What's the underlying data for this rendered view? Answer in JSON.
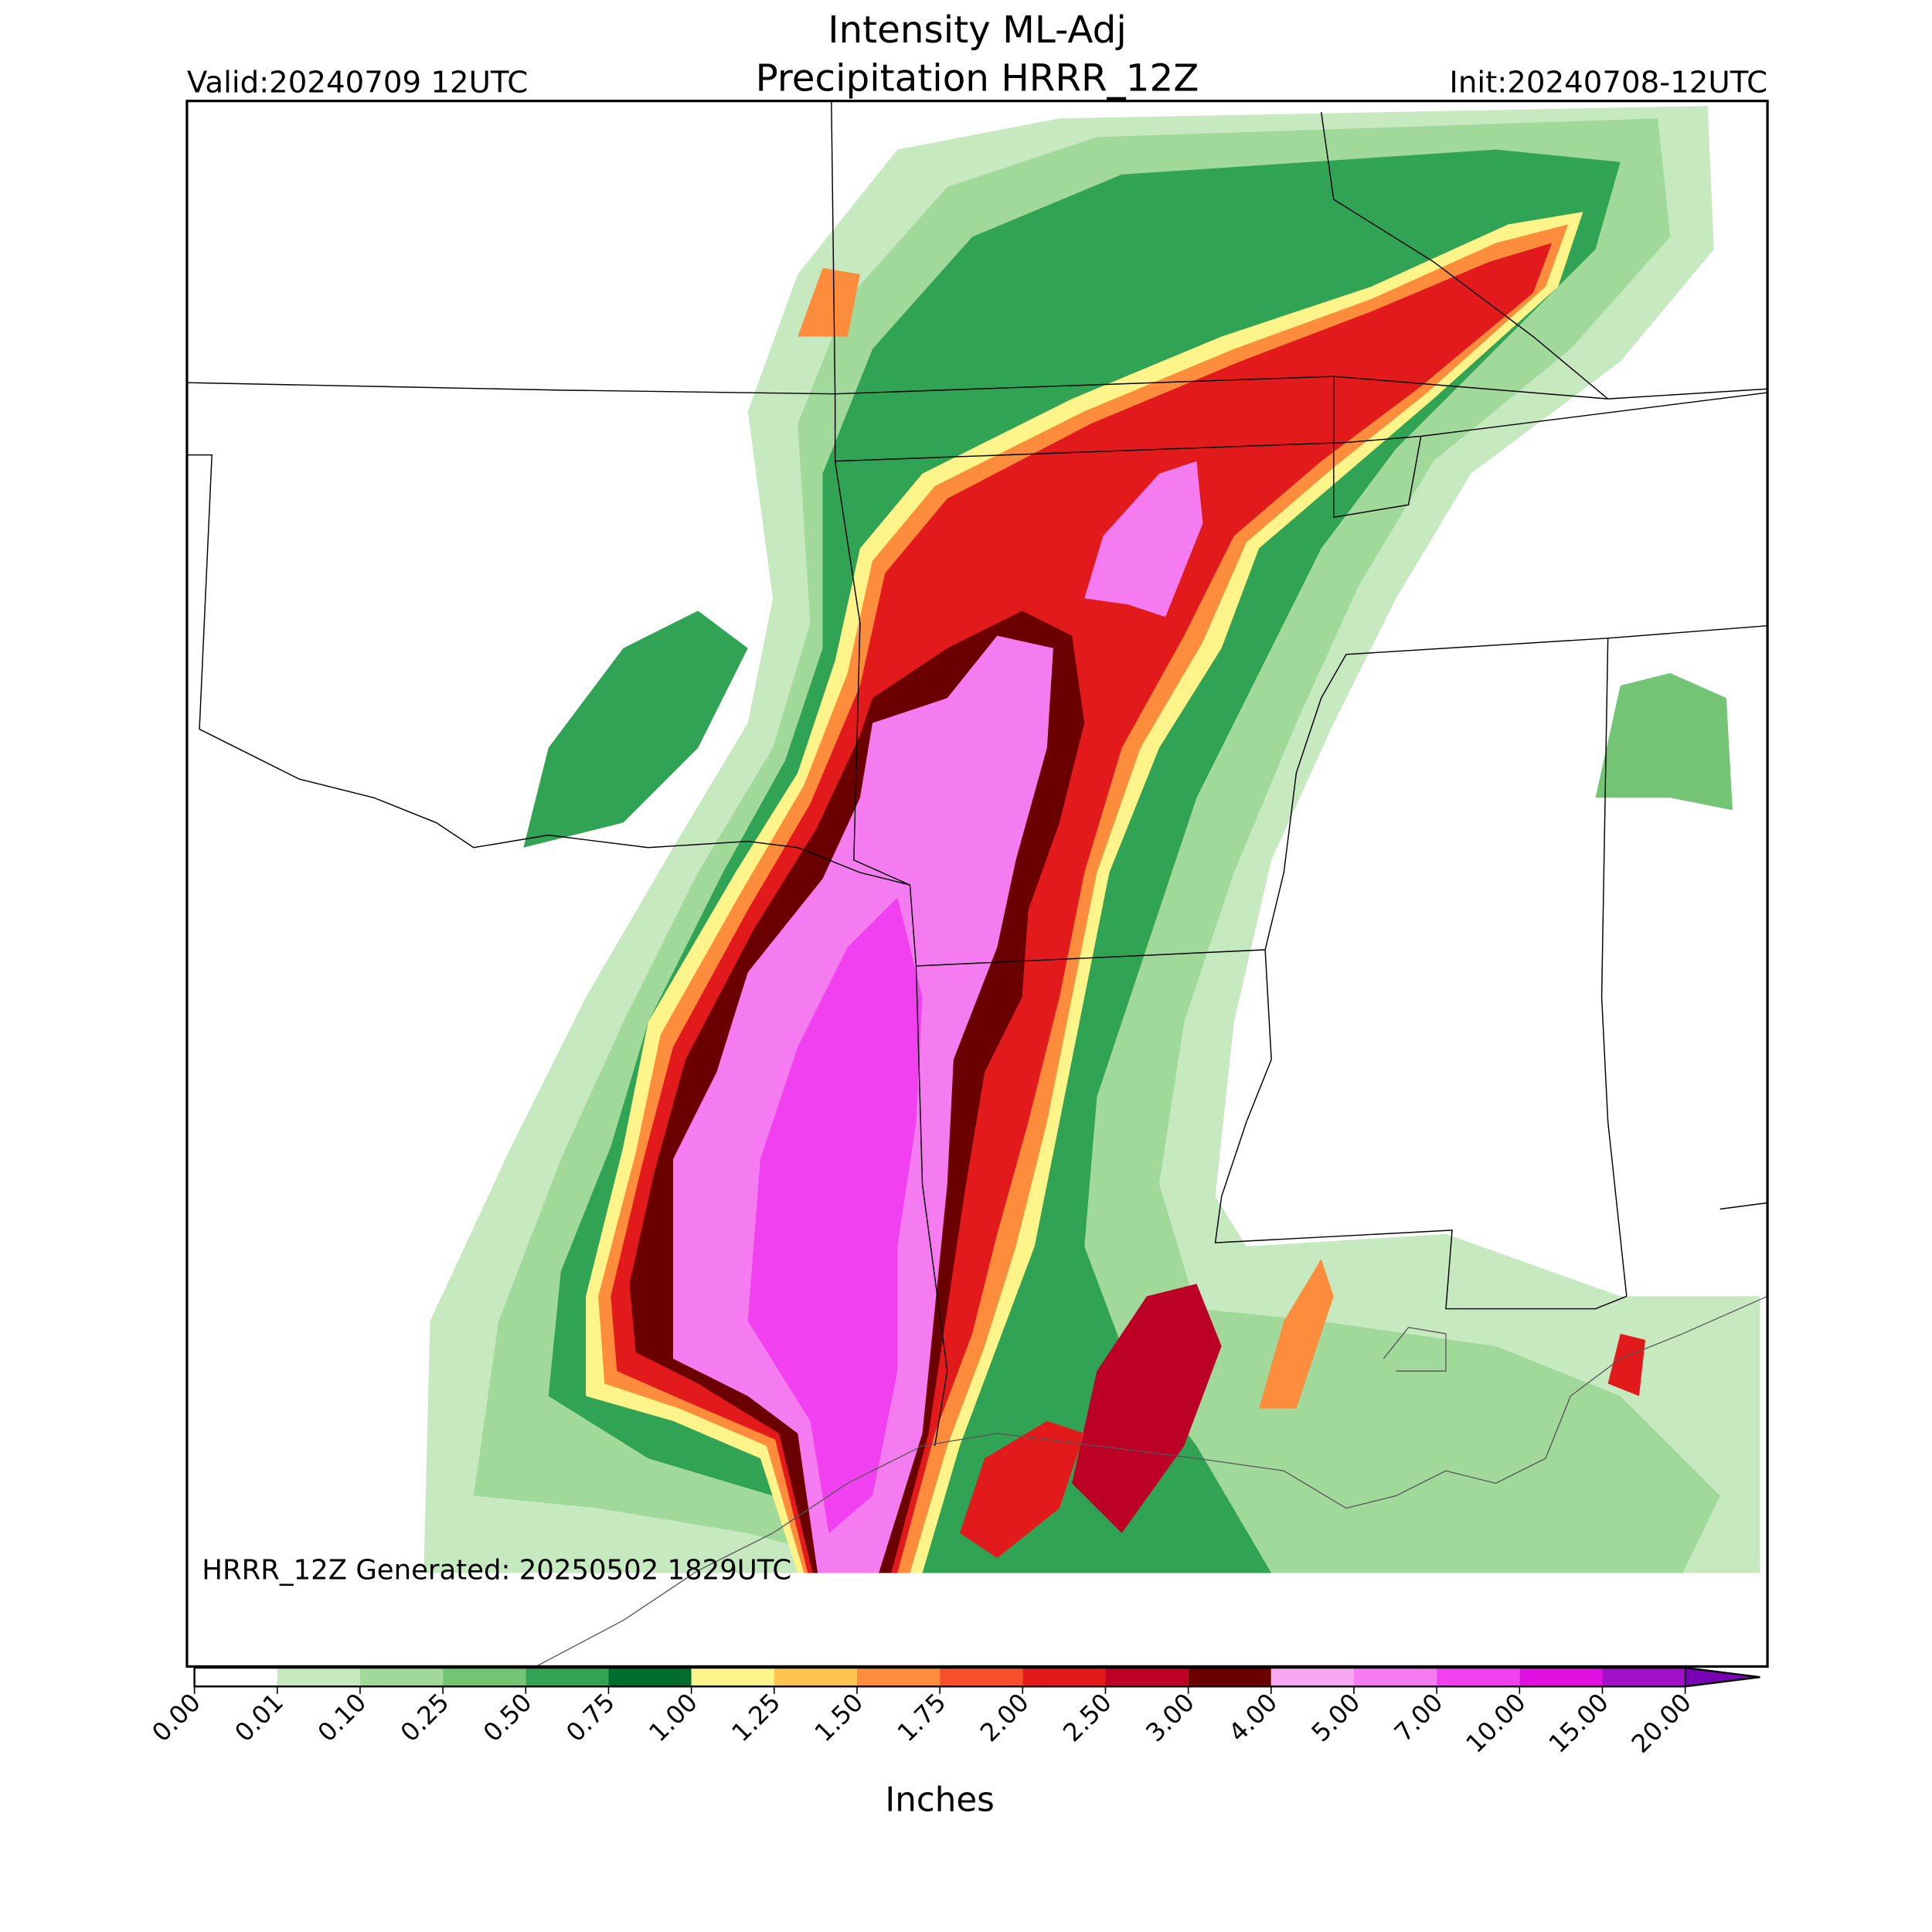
{
  "title_lines": [
    "Intensity ML-Adj",
    "Precipitation HRRR_12Z"
  ],
  "valid": "Valid:20240709 12UTC",
  "init": "Init:20240708-12UTC",
  "footer": "HRRR_12Z Generated: 20250502 1829UTC",
  "colorbar": {
    "label": "Inches",
    "ticks": [
      {
        "value": 0,
        "label": "0.00"
      },
      {
        "value": 0.01,
        "label": "0.01"
      },
      {
        "value": 0.1,
        "label": "0.10"
      },
      {
        "value": 0.25,
        "label": "0.25"
      },
      {
        "value": 0.5,
        "label": "0.50"
      },
      {
        "value": 0.75,
        "label": "0.75"
      },
      {
        "value": 1,
        "label": "1.00"
      },
      {
        "value": 1.25,
        "label": "1.25"
      },
      {
        "value": 1.5,
        "label": "1.50"
      },
      {
        "value": 1.75,
        "label": "1.75"
      },
      {
        "value": 2,
        "label": "2.00"
      },
      {
        "value": 2.5,
        "label": "2.50"
      },
      {
        "value": 3,
        "label": "3.00"
      },
      {
        "value": 4,
        "label": "4.00"
      },
      {
        "value": 5,
        "label": "5.00"
      },
      {
        "value": 7,
        "label": "7.00"
      },
      {
        "value": 10,
        "label": "10.00"
      },
      {
        "value": 15,
        "label": "15.00"
      },
      {
        "value": 20,
        "label": "20.00"
      }
    ],
    "colors": [
      "#ffffff",
      "#c7e9c0",
      "#a1d99b",
      "#74c476",
      "#31a354",
      "#006d2c",
      "#fff48a",
      "#fec44f",
      "#fd8d3c",
      "#f5502a",
      "#e31a1c",
      "#bd0026",
      "#6b0000",
      "#f7a8f2",
      "#f57cf0",
      "#f040f0",
      "#e010e0",
      "#a010c8"
    ],
    "extend_color": "#7a00b8"
  }
}
